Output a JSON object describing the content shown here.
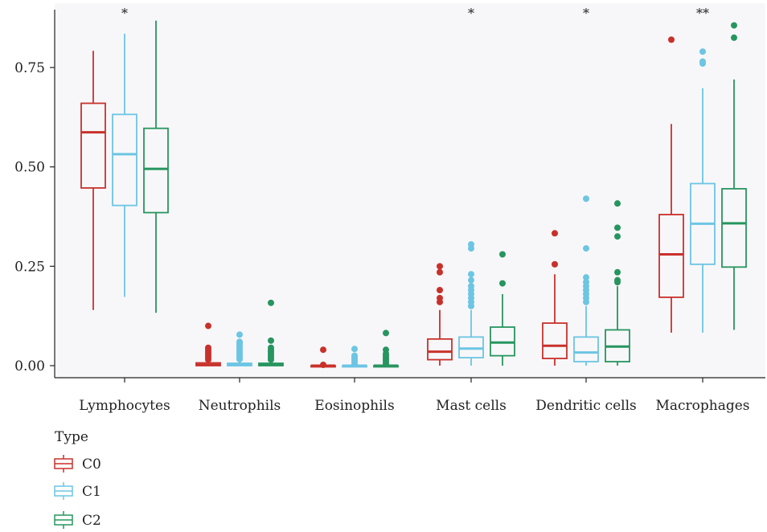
{
  "chart_data": {
    "type": "box",
    "title": "",
    "xlabel": "",
    "ylabel": "",
    "ylim": [
      -0.025,
      0.88
    ],
    "yticks": [
      0.0,
      0.25,
      0.5,
      0.75
    ],
    "ytick_labels": [
      "0.00",
      "0.25",
      "0.50",
      "0.75"
    ],
    "grid": false,
    "background": "#f7f7f9",
    "categories": [
      "Lymphocytes",
      "Neutrophils",
      "Eosinophils",
      "Mast cells",
      "Dendritic cells",
      "Macrophages"
    ],
    "significance": [
      "*",
      "",
      "",
      "*",
      "*",
      "**"
    ],
    "legend": {
      "title": "Type",
      "position": "bottom-left"
    },
    "series": [
      {
        "name": "C0",
        "color": "#c8312b",
        "boxes": [
          {
            "whisker_low": 0.14,
            "q1": 0.447,
            "median": 0.587,
            "q3": 0.66,
            "whisker_high": 0.792,
            "outliers": []
          },
          {
            "whisker_low": 0.0,
            "q1": 0.0,
            "median": 0.002,
            "q3": 0.007,
            "whisker_high": 0.013,
            "outliers": [
              0.1,
              0.045,
              0.04,
              0.035,
              0.03,
              0.025,
              0.02,
              0.015
            ]
          },
          {
            "whisker_low": 0.0,
            "q1": 0.0,
            "median": 0.0,
            "q3": 0.0,
            "whisker_high": 0.0,
            "outliers": [
              0.04,
              0.002
            ]
          },
          {
            "whisker_low": 0.0,
            "q1": 0.015,
            "median": 0.035,
            "q3": 0.067,
            "whisker_high": 0.14,
            "outliers": [
              0.25,
              0.235,
              0.19,
              0.17,
              0.16
            ]
          },
          {
            "whisker_low": 0.0,
            "q1": 0.018,
            "median": 0.05,
            "q3": 0.107,
            "whisker_high": 0.23,
            "outliers": [
              0.333,
              0.255
            ]
          },
          {
            "whisker_low": 0.083,
            "q1": 0.172,
            "median": 0.28,
            "q3": 0.38,
            "whisker_high": 0.608,
            "outliers": [
              0.82
            ]
          }
        ]
      },
      {
        "name": "C1",
        "color": "#6cc5e3",
        "boxes": [
          {
            "whisker_low": 0.173,
            "q1": 0.403,
            "median": 0.532,
            "q3": 0.632,
            "whisker_high": 0.835,
            "outliers": []
          },
          {
            "whisker_low": 0.0,
            "q1": 0.0,
            "median": 0.002,
            "q3": 0.006,
            "whisker_high": 0.012,
            "outliers": [
              0.078,
              0.06,
              0.055,
              0.05,
              0.045,
              0.04,
              0.035,
              0.03,
              0.025,
              0.02,
              0.016
            ]
          },
          {
            "whisker_low": 0.0,
            "q1": 0.0,
            "median": 0.0,
            "q3": 0.0,
            "whisker_high": 0.0,
            "outliers": [
              0.042,
              0.025,
              0.02,
              0.015,
              0.01,
              0.005
            ]
          },
          {
            "whisker_low": 0.0,
            "q1": 0.02,
            "median": 0.043,
            "q3": 0.072,
            "whisker_high": 0.14,
            "outliers": [
              0.305,
              0.295,
              0.23,
              0.215,
              0.2,
              0.19,
              0.18,
              0.17,
              0.16,
              0.15
            ]
          },
          {
            "whisker_low": 0.0,
            "q1": 0.01,
            "median": 0.033,
            "q3": 0.072,
            "whisker_high": 0.15,
            "outliers": [
              0.42,
              0.295,
              0.222,
              0.21,
              0.2,
              0.19,
              0.18,
              0.17,
              0.16
            ]
          },
          {
            "whisker_low": 0.083,
            "q1": 0.255,
            "median": 0.357,
            "q3": 0.458,
            "whisker_high": 0.698,
            "outliers": [
              0.79,
              0.765,
              0.76
            ]
          }
        ]
      },
      {
        "name": "C2",
        "color": "#27955f",
        "boxes": [
          {
            "whisker_low": 0.133,
            "q1": 0.385,
            "median": 0.495,
            "q3": 0.597,
            "whisker_high": 0.868,
            "outliers": []
          },
          {
            "whisker_low": 0.0,
            "q1": 0.0,
            "median": 0.002,
            "q3": 0.006,
            "whisker_high": 0.012,
            "outliers": [
              0.158,
              0.063,
              0.045,
              0.04,
              0.035,
              0.03,
              0.025,
              0.02,
              0.015
            ]
          },
          {
            "whisker_low": 0.0,
            "q1": 0.0,
            "median": 0.0,
            "q3": 0.0,
            "whisker_high": 0.0,
            "outliers": [
              0.082,
              0.04,
              0.03,
              0.025,
              0.02,
              0.015,
              0.01,
              0.005
            ]
          },
          {
            "whisker_low": 0.0,
            "q1": 0.025,
            "median": 0.058,
            "q3": 0.097,
            "whisker_high": 0.18,
            "outliers": [
              0.28,
              0.207
            ]
          },
          {
            "whisker_low": 0.0,
            "q1": 0.01,
            "median": 0.048,
            "q3": 0.09,
            "whisker_high": 0.2,
            "outliers": [
              0.408,
              0.347,
              0.325,
              0.235,
              0.215,
              0.21
            ]
          },
          {
            "whisker_low": 0.09,
            "q1": 0.248,
            "median": 0.358,
            "q3": 0.445,
            "whisker_high": 0.72,
            "outliers": [
              0.856,
              0.825
            ]
          }
        ]
      }
    ]
  }
}
